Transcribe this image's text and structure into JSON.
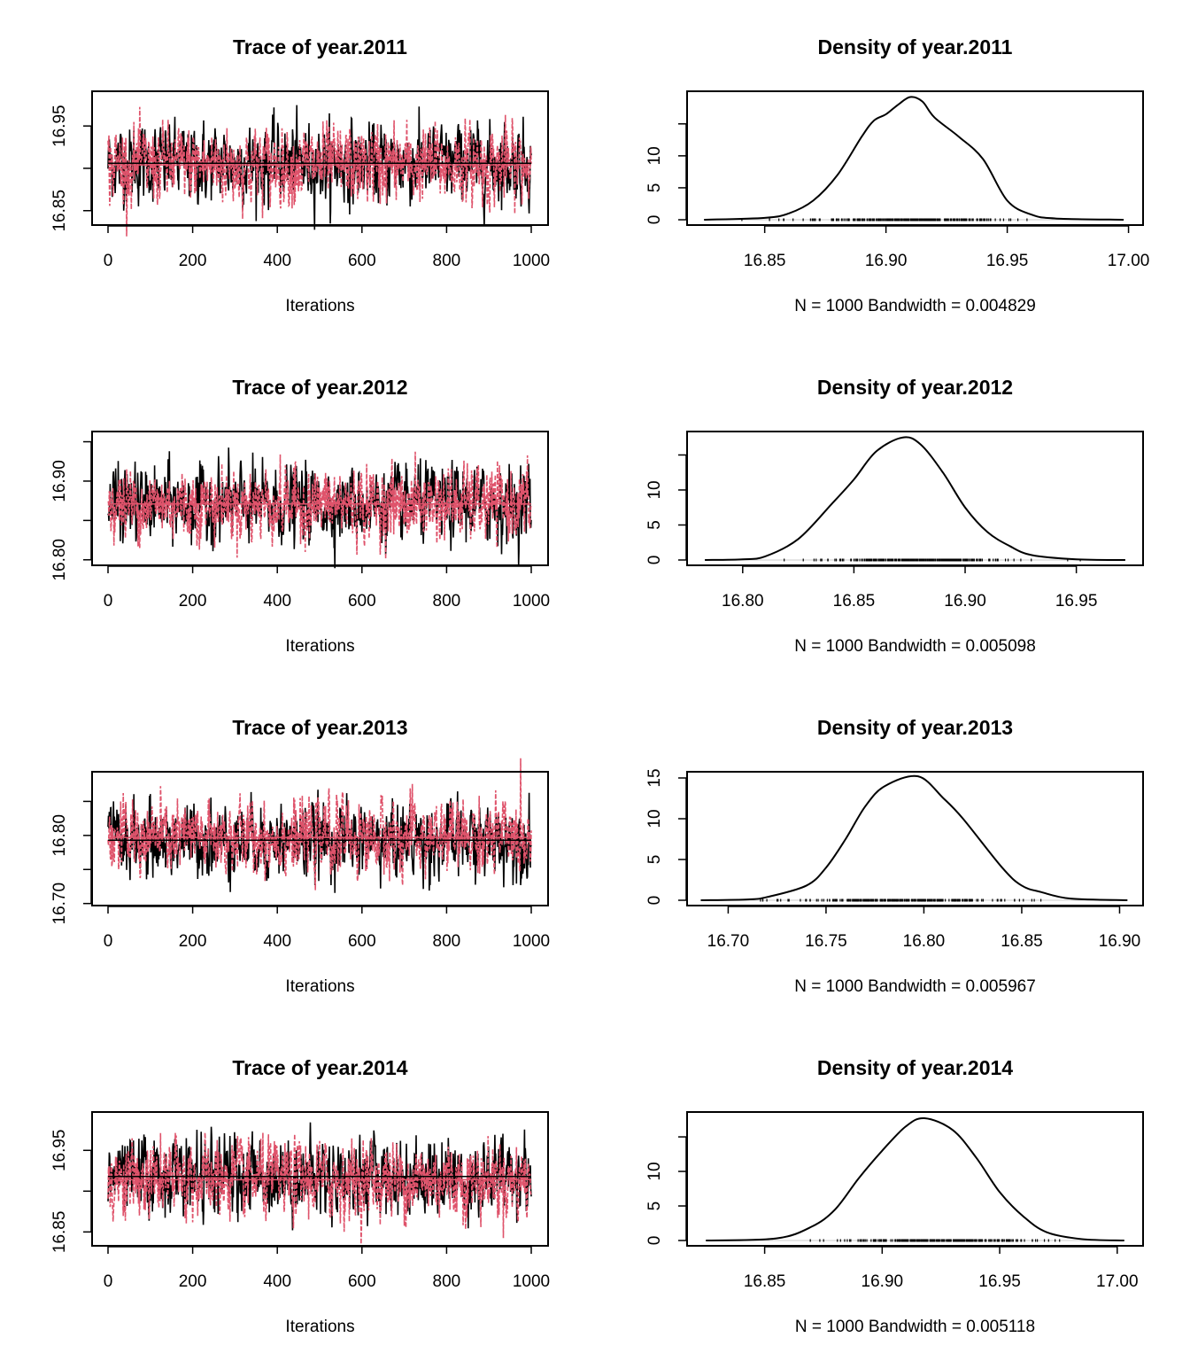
{
  "chart_data": [
    {
      "type": "line",
      "title": "Trace of year.2011",
      "xlabel": "Iterations",
      "xlim": [
        0,
        1000
      ],
      "xticks": [
        0,
        200,
        400,
        600,
        800,
        1000
      ],
      "ylim": [
        16.833,
        16.991
      ],
      "yticks": [
        16.85,
        16.9,
        16.95
      ],
      "yticklabels": [
        "16.85",
        "",
        "16.95"
      ],
      "series": [
        {
          "color": "#000000",
          "dash": false,
          "mean": 16.906,
          "sd": 0.022
        },
        {
          "color": "#DF536B",
          "dash": true,
          "mean": 16.904,
          "sd": 0.022
        }
      ]
    },
    {
      "type": "line",
      "title": "Density of year.2011",
      "xlabel": "N = 1000   Bandwidth = 0.004829",
      "xlim": [
        16.818,
        17.006
      ],
      "xticks": [
        16.85,
        16.9,
        16.95,
        17.0
      ],
      "xticklabels": [
        "16.85",
        "16.90",
        "16.95",
        "17.00"
      ],
      "ylim": [
        -0.83,
        20.1
      ],
      "yticks": [
        0,
        5,
        10,
        15
      ],
      "yticklabels": [
        "0",
        "5",
        "10",
        ""
      ],
      "points": [
        [
          16.825,
          0
        ],
        [
          16.85,
          0.3
        ],
        [
          16.86,
          1
        ],
        [
          16.87,
          3
        ],
        [
          16.88,
          7
        ],
        [
          16.89,
          13
        ],
        [
          16.895,
          15.5
        ],
        [
          16.9,
          16.5
        ],
        [
          16.905,
          18
        ],
        [
          16.91,
          19.2
        ],
        [
          16.915,
          18.5
        ],
        [
          16.92,
          16
        ],
        [
          16.93,
          13
        ],
        [
          16.94,
          9.5
        ],
        [
          16.95,
          3
        ],
        [
          16.96,
          0.8
        ],
        [
          16.97,
          0.2
        ],
        [
          16.998,
          0
        ]
      ],
      "rug": [
        16.85,
        16.97
      ]
    },
    {
      "type": "line",
      "title": "Trace of year.2012",
      "xlabel": "Iterations",
      "xlim": [
        0,
        1000
      ],
      "xticks": [
        0,
        200,
        400,
        600,
        800,
        1000
      ],
      "ylim": [
        16.793,
        16.963
      ],
      "yticks": [
        16.8,
        16.85,
        16.9,
        16.95
      ],
      "yticklabels": [
        "16.80",
        "",
        "16.90",
        ""
      ],
      "series": [
        {
          "color": "#000000",
          "dash": false,
          "mean": 16.871,
          "sd": 0.023
        },
        {
          "color": "#DF536B",
          "dash": true,
          "mean": 16.871,
          "sd": 0.022
        }
      ]
    },
    {
      "type": "line",
      "title": "Density of year.2012",
      "xlabel": "N = 1000   Bandwidth = 0.005098",
      "xlim": [
        16.775,
        16.98
      ],
      "xticks": [
        16.8,
        16.85,
        16.9,
        16.95
      ],
      "xticklabels": [
        "16.80",
        "16.85",
        "16.90",
        "16.95"
      ],
      "ylim": [
        -0.76,
        18.35
      ],
      "yticks": [
        0,
        5,
        10,
        15
      ],
      "yticklabels": [
        "0",
        "5",
        "10",
        ""
      ],
      "points": [
        [
          16.783,
          0
        ],
        [
          16.8,
          0.1
        ],
        [
          16.81,
          0.5
        ],
        [
          16.825,
          3
        ],
        [
          16.84,
          8
        ],
        [
          16.85,
          11.5
        ],
        [
          16.86,
          15.5
        ],
        [
          16.872,
          17.5
        ],
        [
          16.88,
          16.5
        ],
        [
          16.89,
          12.5
        ],
        [
          16.9,
          7.5
        ],
        [
          16.91,
          4
        ],
        [
          16.92,
          2
        ],
        [
          16.93,
          0.7
        ],
        [
          16.95,
          0.1
        ],
        [
          16.972,
          0
        ]
      ],
      "rug": [
        16.813,
        16.945
      ]
    },
    {
      "type": "line",
      "title": "Trace of year.2013",
      "xlabel": "Iterations",
      "xlim": [
        0,
        1000
      ],
      "xticks": [
        0,
        200,
        400,
        600,
        800,
        1000
      ],
      "ylim": [
        16.697,
        16.8935
      ],
      "yticks": [
        16.7,
        16.75,
        16.8,
        16.85
      ],
      "yticklabels": [
        "16.70",
        "",
        "16.80",
        ""
      ],
      "series": [
        {
          "color": "#000000",
          "dash": false,
          "mean": 16.793,
          "sd": 0.026
        },
        {
          "color": "#DF536B",
          "dash": true,
          "mean": 16.797,
          "sd": 0.026
        }
      ]
    },
    {
      "type": "line",
      "title": "Density of year.2013",
      "xlabel": "N = 1000   Bandwidth = 0.005967",
      "xlim": [
        16.679,
        16.912
      ],
      "xticks": [
        16.7,
        16.75,
        16.8,
        16.85,
        16.9
      ],
      "xticklabels": [
        "16.70",
        "16.75",
        "16.80",
        "16.85",
        "16.90"
      ],
      "ylim": [
        -0.65,
        15.76
      ],
      "yticks": [
        0,
        5,
        10,
        15
      ],
      "yticklabels": [
        "0",
        "5",
        "10",
        "15"
      ],
      "points": [
        [
          16.686,
          0
        ],
        [
          16.71,
          0.1
        ],
        [
          16.72,
          0.4
        ],
        [
          16.74,
          1.8
        ],
        [
          16.75,
          4
        ],
        [
          16.76,
          7.5
        ],
        [
          16.77,
          11.5
        ],
        [
          16.78,
          14
        ],
        [
          16.797,
          15.2
        ],
        [
          16.81,
          12.5
        ],
        [
          16.82,
          10
        ],
        [
          16.84,
          4
        ],
        [
          16.85,
          1.8
        ],
        [
          16.86,
          1
        ],
        [
          16.875,
          0.2
        ],
        [
          16.904,
          0
        ]
      ],
      "rug": [
        16.705,
        16.873
      ]
    },
    {
      "type": "line",
      "title": "Trace of year.2014",
      "xlabel": "Iterations",
      "xlim": [
        0,
        1000
      ],
      "xticks": [
        0,
        200,
        400,
        600,
        800,
        1000
      ],
      "ylim": [
        16.833,
        16.997
      ],
      "yticks": [
        16.85,
        16.9,
        16.95
      ],
      "yticklabels": [
        "16.85",
        "",
        "16.95"
      ],
      "series": [
        {
          "color": "#000000",
          "dash": false,
          "mean": 16.918,
          "sd": 0.023
        },
        {
          "color": "#DF536B",
          "dash": true,
          "mean": 16.914,
          "sd": 0.023
        }
      ]
    },
    {
      "type": "line",
      "title": "Density of year.2014",
      "xlabel": "N = 1000   Bandwidth = 0.005118",
      "xlim": [
        16.817,
        17.011
      ],
      "xticks": [
        16.85,
        16.9,
        16.95,
        17.0
      ],
      "xticklabels": [
        "16.85",
        "16.90",
        "16.95",
        "17.00"
      ],
      "ylim": [
        -0.77,
        18.6
      ],
      "yticks": [
        0,
        5,
        10,
        15
      ],
      "yticklabels": [
        "0",
        "5",
        "10",
        ""
      ],
      "points": [
        [
          16.825,
          0
        ],
        [
          16.855,
          0.3
        ],
        [
          16.87,
          2
        ],
        [
          16.88,
          4.5
        ],
        [
          16.89,
          9
        ],
        [
          16.9,
          13
        ],
        [
          16.91,
          16.5
        ],
        [
          16.918,
          17.7
        ],
        [
          16.93,
          16
        ],
        [
          16.94,
          12
        ],
        [
          16.95,
          7
        ],
        [
          16.96,
          3.5
        ],
        [
          16.97,
          1.2
        ],
        [
          16.985,
          0.2
        ],
        [
          17.003,
          0
        ]
      ],
      "rug": [
        16.865,
        16.985
      ]
    }
  ]
}
